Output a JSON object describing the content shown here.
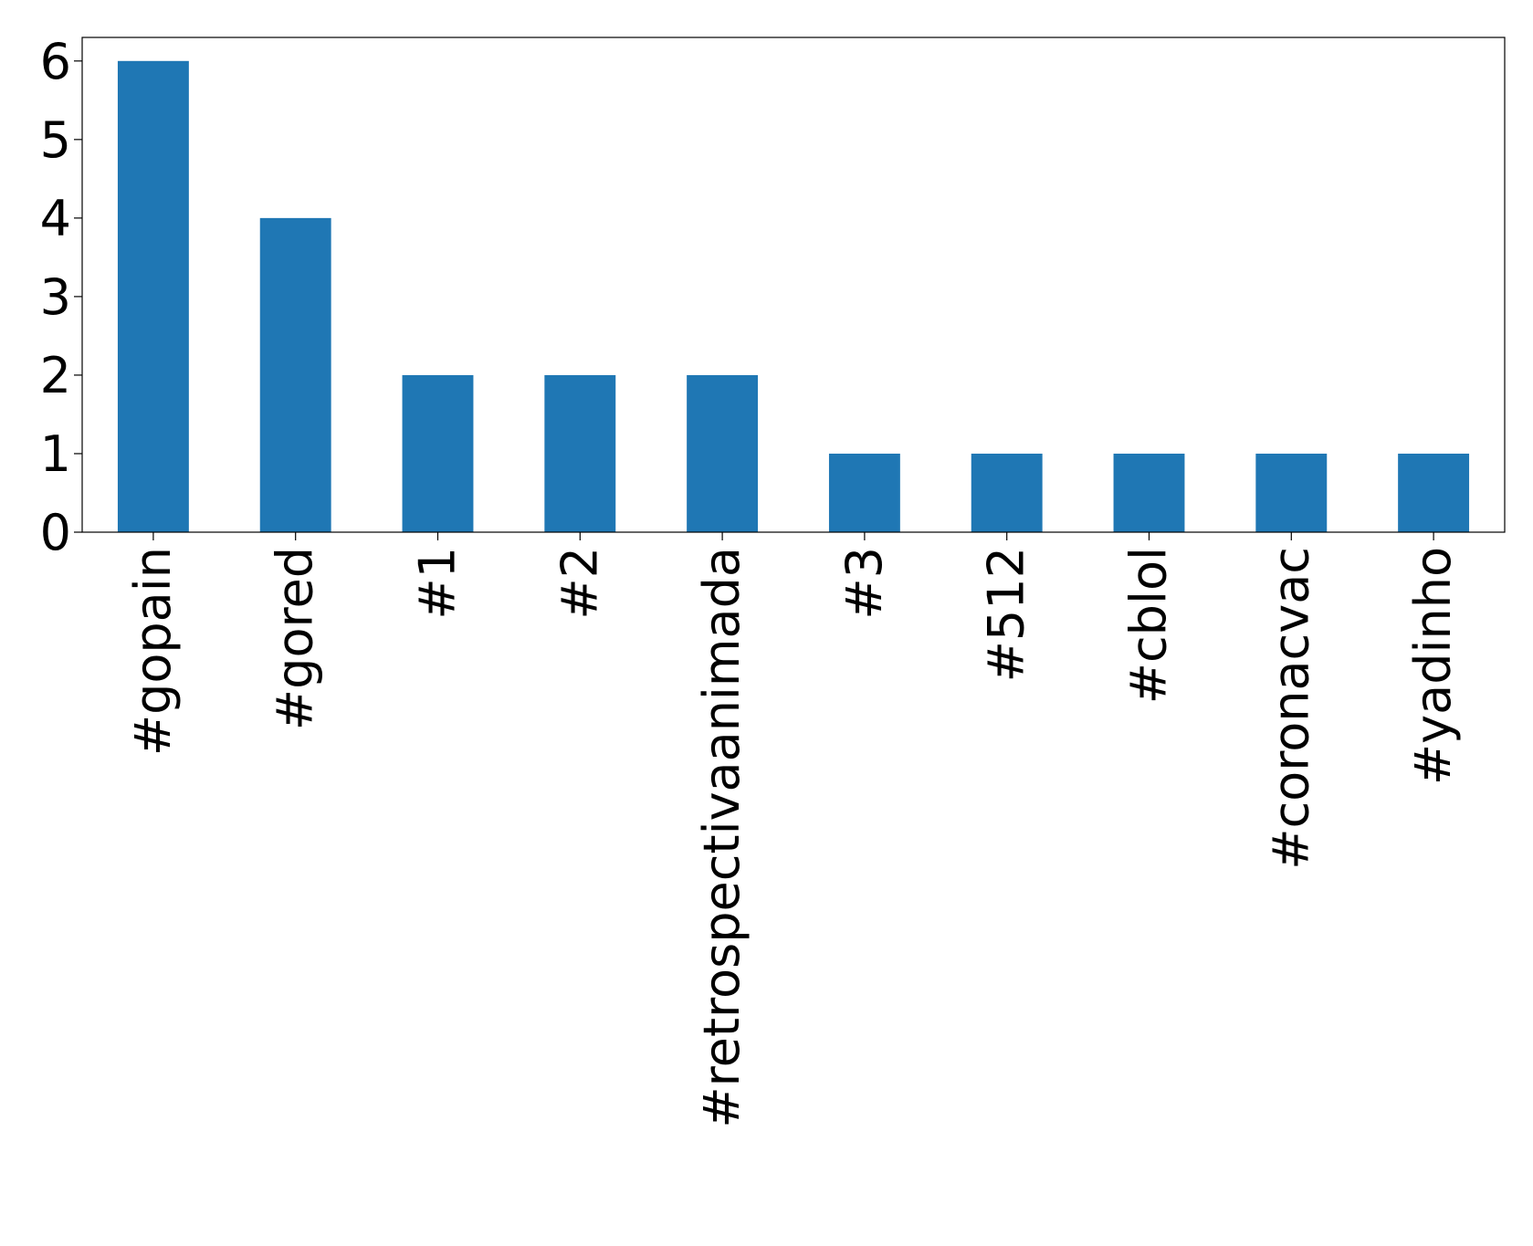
{
  "chart_data": {
    "type": "bar",
    "categories": [
      "#gopain",
      "#gored",
      "#1",
      "#2",
      "#retrospectivaanimada",
      "#3",
      "#512",
      "#cblol",
      "#coronacvac",
      "#yadinho"
    ],
    "values": [
      6,
      4,
      2,
      2,
      2,
      1,
      1,
      1,
      1,
      1
    ],
    "yticks": [
      "0",
      "1",
      "2",
      "3",
      "4",
      "5",
      "6"
    ],
    "ylim": [
      0,
      6.3
    ],
    "title": "",
    "xlabel": "",
    "ylabel": "",
    "grid": false,
    "legend": "none",
    "bar_color": "#1f77b4"
  }
}
